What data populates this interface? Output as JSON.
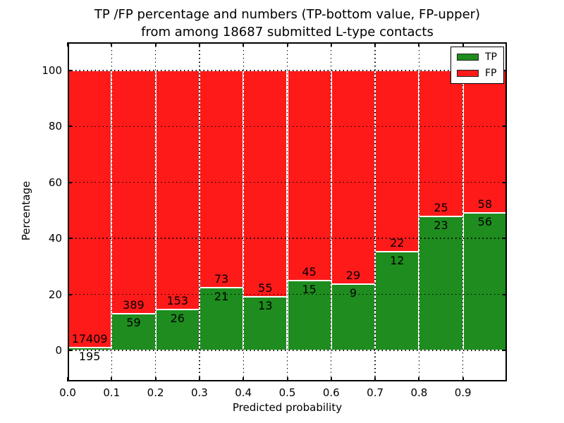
{
  "chart_data": {
    "type": "bar",
    "stacked": true,
    "title_lines": [
      "TP /FP percentage and numbers (TP-bottom value, FP-upper)",
      "from among 18687 submitted L-type contacts"
    ],
    "total_contacts": 18687,
    "xlabel": "Predicted probability",
    "ylabel": "Percentage",
    "xlim": [
      0.0,
      1.0
    ],
    "ylim": [
      -11,
      110
    ],
    "bin_width": 0.1,
    "grid": "dotted",
    "xtick_labels": [
      "0.0",
      "0.1",
      "0.2",
      "0.3",
      "0.4",
      "0.5",
      "0.6",
      "0.7",
      "0.8",
      "0.9"
    ],
    "yticks": [
      0,
      20,
      40,
      60,
      80,
      100
    ],
    "ytick_labels": [
      "0",
      "20",
      "40",
      "60",
      "80",
      "100"
    ],
    "categories": [
      "0.0-0.1",
      "0.1-0.2",
      "0.2-0.3",
      "0.3-0.4",
      "0.4-0.5",
      "0.5-0.6",
      "0.6-0.7",
      "0.7-0.8",
      "0.8-0.9",
      "0.9-1.0"
    ],
    "series": [
      {
        "name": "TP",
        "color": "#1e8c1e",
        "counts": [
          195,
          59,
          26,
          21,
          13,
          15,
          9,
          12,
          23,
          56
        ],
        "percent": [
          1.11,
          13.17,
          14.53,
          22.34,
          19.12,
          25.0,
          23.68,
          35.29,
          47.92,
          49.12
        ]
      },
      {
        "name": "FP",
        "color": "#ff1a1a",
        "counts": [
          17409,
          389,
          153,
          73,
          55,
          45,
          29,
          22,
          25,
          58
        ],
        "percent": [
          98.89,
          86.83,
          85.47,
          77.66,
          80.88,
          75.0,
          76.32,
          64.71,
          52.08,
          50.88
        ]
      }
    ],
    "legend": {
      "position": "upper right",
      "labels": [
        "TP",
        "FP"
      ]
    }
  }
}
